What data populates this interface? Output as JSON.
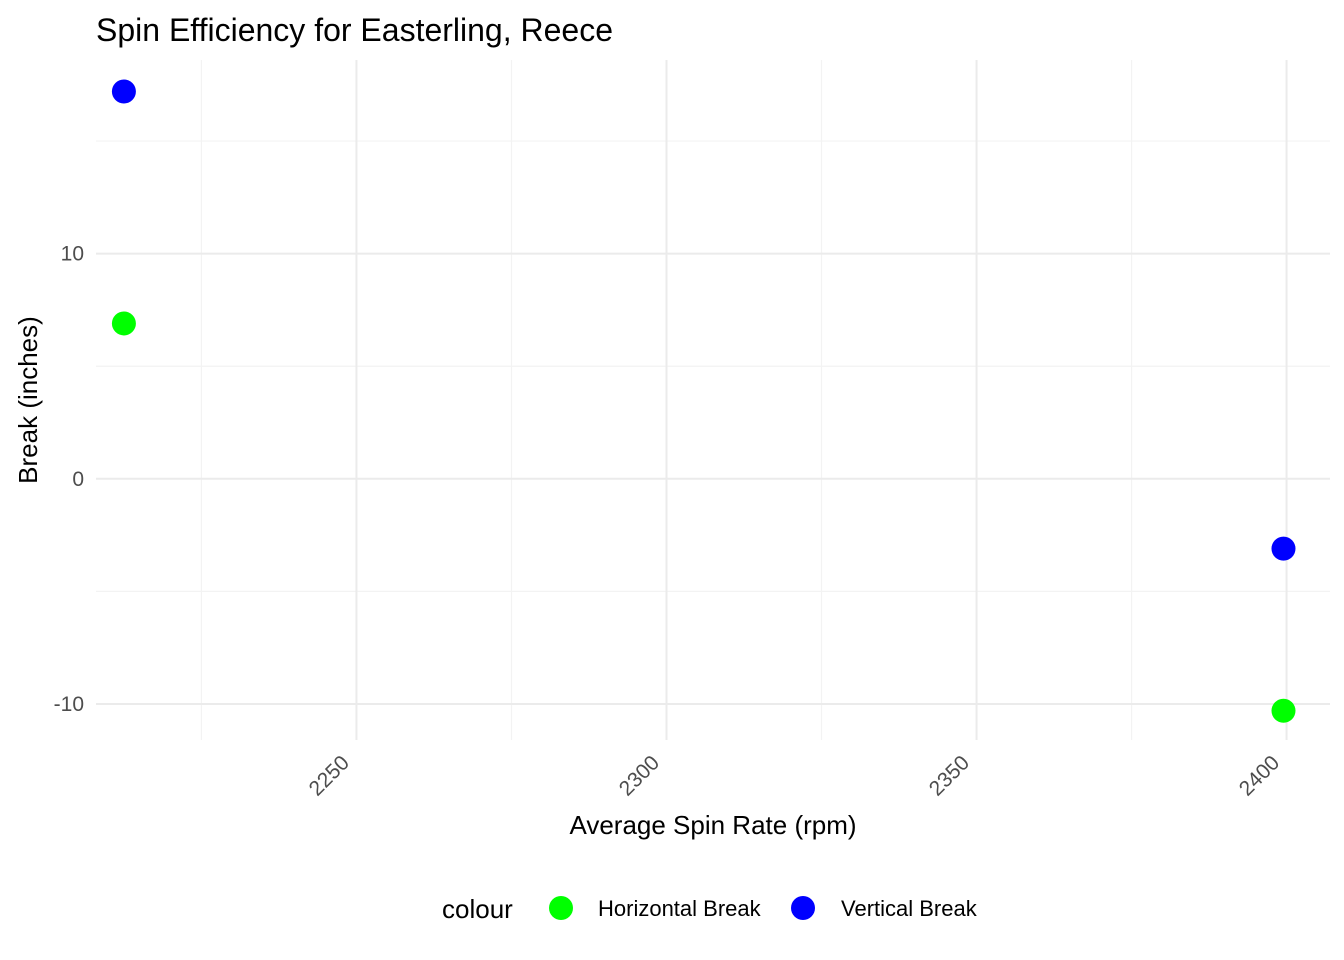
{
  "chart_data": {
    "type": "scatter",
    "title": "Spin Efficiency for Easterling, Reece",
    "xlabel": "Average Spin Rate (rpm)",
    "ylabel": "Break (inches)",
    "xlim": [
      2208,
      2407
    ],
    "ylim": [
      -11.6,
      18.6
    ],
    "x_ticks": [
      2250,
      2300,
      2350,
      2400
    ],
    "y_ticks": [
      -10,
      0,
      10
    ],
    "x_minor_ticks": [
      2225,
      2275,
      2325,
      2375
    ],
    "y_minor_ticks": [
      -5,
      5,
      15
    ],
    "grid": true,
    "legend": {
      "position": "bottom",
      "title": "colour"
    },
    "series": [
      {
        "name": "Horizontal Break",
        "color": "#00ff00",
        "points": [
          {
            "x": 2212.5,
            "y": 6.9
          },
          {
            "x": 2399.5,
            "y": -10.3
          }
        ]
      },
      {
        "name": "Vertical Break",
        "color": "#0000ff",
        "points": [
          {
            "x": 2212.5,
            "y": 17.2
          },
          {
            "x": 2399.5,
            "y": -3.1
          }
        ]
      }
    ]
  }
}
